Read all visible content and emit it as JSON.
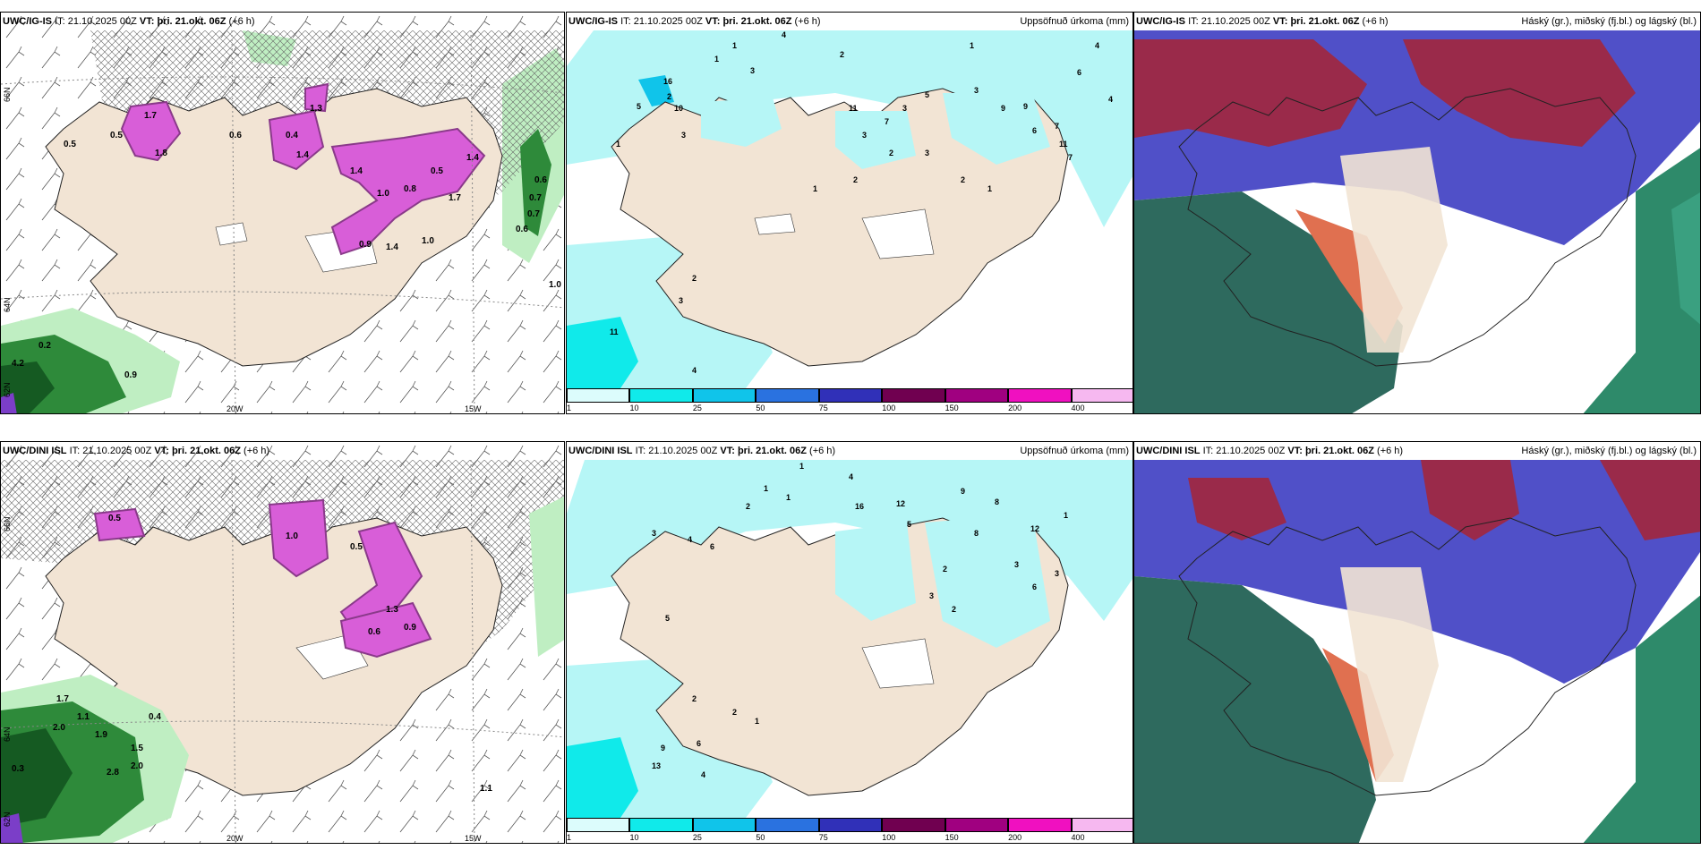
{
  "rows": [
    {
      "model": "UWC/IG-IS",
      "it_label": "IT:",
      "it_value": "21.10.2025 00Z",
      "vt_label": "VT:",
      "vt_value": "þri. 21.okt. 06Z",
      "lead": "(+6 h)"
    },
    {
      "model": "UWC/DINI ISL",
      "it_label": "IT:",
      "it_value": "21.10.2025 00Z",
      "vt_label": "VT:",
      "vt_value": "þri. 21.okt. 06Z",
      "lead": "(+6 h)"
    }
  ],
  "panel_titles": {
    "precip": "Uppsöfnuð úrkoma (mm)",
    "cloud": "Háský (gr.), miðský (fj.bl.) og lágský (bl.)"
  },
  "axis_labels": {
    "lon_20w": "20W",
    "lon_15w": "15W",
    "lat_66n": "66N",
    "lat_64n": "64N",
    "lat_62n": "62N"
  },
  "colorbar": {
    "labels": [
      "1",
      "10",
      "25",
      "50",
      "75",
      "100",
      "150",
      "200",
      "400"
    ],
    "colors": [
      "#dcfcfc",
      "#10eaea",
      "#10c4ea",
      "#2a72e0",
      "#3030b8",
      "#700050",
      "#a00080",
      "#f010c0",
      "#f6b8f0"
    ]
  },
  "colors": {
    "land": "#f2e4d4",
    "snow_purple": "#d85ed8",
    "snow_dark": "#8a3a8a",
    "rain_green": "#2e8a3a",
    "light_green": "#bfeec2",
    "precip_light": "#b6f6f6",
    "precip_cyan": "#10eaea",
    "cloud_red": "#9a2a4a",
    "cloud_blue": "#5050c8",
    "cloud_green": "#2e6a5e"
  },
  "snow_values_top": [
    "1.7",
    "0.5",
    "0.5",
    "1.8",
    "0.6",
    "0.4",
    "1.4",
    "1.3",
    "1.4",
    "1.0",
    "0.5",
    "0.8",
    "1.4",
    "1.0",
    "0.9",
    "1.4",
    "1.7",
    "0.7",
    "0.6",
    "0.7",
    "0.6",
    "1.0",
    "4.2",
    "0.2",
    "0.9"
  ],
  "snow_values_bottom": [
    "1.1",
    "0.5",
    "1.0",
    "1.3",
    "0.5",
    "0.6",
    "0.9",
    "1.7",
    "1.9",
    "1.1",
    "2.0",
    "1.5",
    "2.0",
    "0.3",
    "2.8",
    "0.4"
  ],
  "precip_values_top": [
    "1",
    "4",
    "1",
    "3",
    "2",
    "5",
    "16",
    "10",
    "3",
    "1",
    "2",
    "11",
    "7",
    "3",
    "5",
    "9",
    "9",
    "7",
    "4",
    "6",
    "11",
    "4",
    "3",
    "2",
    "1",
    "2",
    "3",
    "2",
    "1",
    "11",
    "4",
    "2",
    "3",
    "3",
    "7",
    "6",
    "1"
  ],
  "precip_values_bottom": [
    "1",
    "4",
    "1",
    "1",
    "2",
    "3",
    "4",
    "6",
    "16",
    "12",
    "5",
    "9",
    "8",
    "12",
    "2",
    "3",
    "8",
    "6",
    "3",
    "2",
    "1",
    "9",
    "13",
    "4",
    "5",
    "6",
    "2",
    "2",
    "1",
    "3"
  ]
}
